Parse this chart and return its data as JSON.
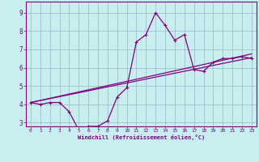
{
  "xlabel": "Windchill (Refroidissement éolien,°C)",
  "background_color": "#c8eef0",
  "line_color": "#800080",
  "grid_color": "#9ab8c0",
  "xlim": [
    -0.5,
    23.5
  ],
  "ylim": [
    2.8,
    9.6
  ],
  "xticks": [
    0,
    1,
    2,
    3,
    4,
    5,
    6,
    7,
    8,
    9,
    10,
    11,
    12,
    13,
    14,
    15,
    16,
    17,
    18,
    19,
    20,
    21,
    22,
    23
  ],
  "yticks": [
    3,
    4,
    5,
    6,
    7,
    8,
    9
  ],
  "line1_x": [
    0,
    1,
    2,
    3,
    4,
    5,
    6,
    7,
    8,
    9,
    10,
    11,
    12,
    13,
    14,
    15,
    16,
    17,
    18,
    19,
    20,
    21,
    22,
    23
  ],
  "line1_y": [
    4.1,
    4.0,
    4.1,
    4.1,
    3.6,
    2.6,
    2.8,
    2.8,
    3.1,
    4.4,
    4.9,
    7.4,
    7.8,
    9.0,
    8.3,
    7.5,
    7.8,
    5.9,
    5.8,
    6.3,
    6.5,
    6.5,
    6.6,
    6.5
  ],
  "line2_x": [
    0,
    23
  ],
  "line2_y": [
    4.1,
    6.55
  ],
  "line3_x": [
    0,
    23
  ],
  "line3_y": [
    4.1,
    6.75
  ]
}
